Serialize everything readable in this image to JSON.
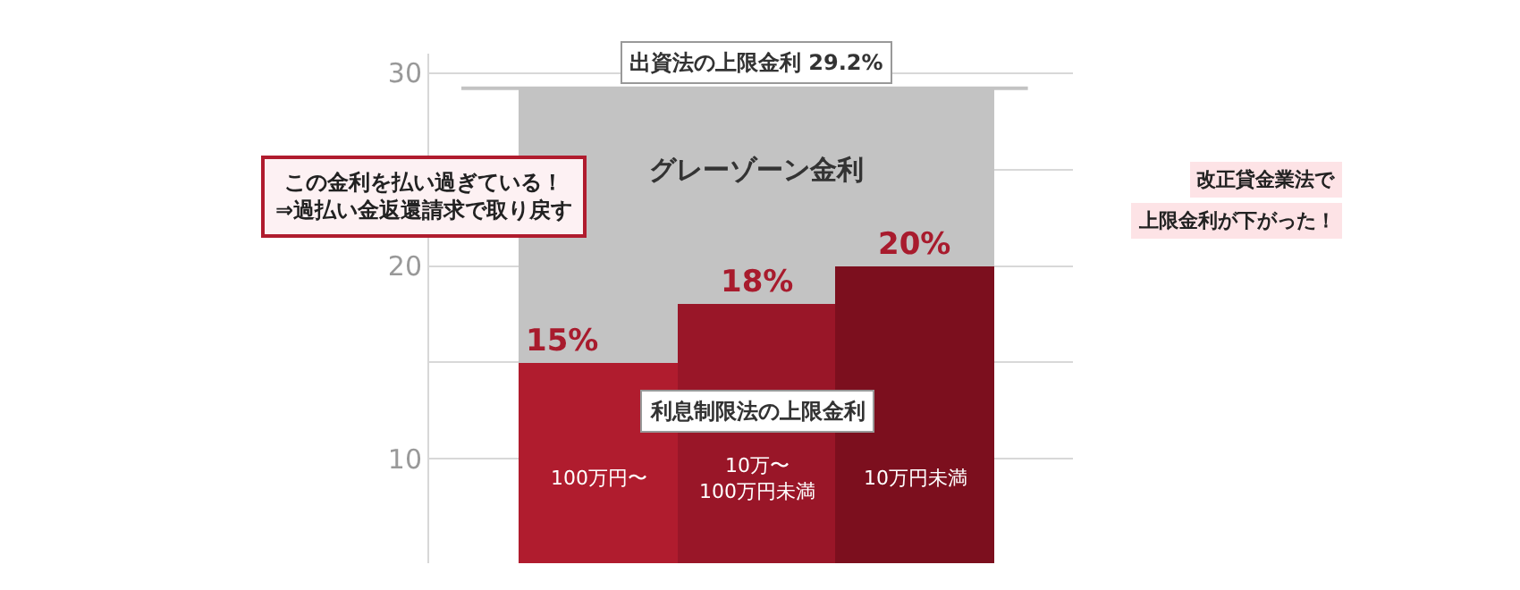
{
  "chart_data": {
    "type": "bar",
    "stacked": true,
    "categories": [
      "100万円〜",
      "10万〜\n100万円未満",
      "10万円未満"
    ],
    "series": [
      {
        "color": "#a81b2d",
        "colors": [
          "#b01c2e",
          "#991628",
          "#7c0f1e"
        ],
        "values": [
          15,
          18,
          20
        ],
        "value_labels": [
          "15%",
          "18%",
          "20%"
        ]
      },
      {
        "color": "#c3c3c3",
        "values": [
          14.2,
          11.2,
          9.2
        ]
      }
    ],
    "ylim": [
      4.6,
      31
    ],
    "yticks": [
      10,
      {
        "value": 15,
        "label": null
      },
      20,
      {
        "value": 25,
        "label": null
      },
      30
    ],
    "grid": "y",
    "ref_lines": [
      {
        "axis": "y",
        "value": 29.2,
        "label": "出資法の上限金利 29.2%",
        "color": "#c3c3c3"
      }
    ],
    "annotations": [
      "グレーゾーン金利",
      "利息制限法の上限金利",
      "この金利を払い過ぎている！\n⇒過払い金返還請求で取り戻す",
      "改正貸金業法で",
      "上限金利が下がった！"
    ]
  }
}
